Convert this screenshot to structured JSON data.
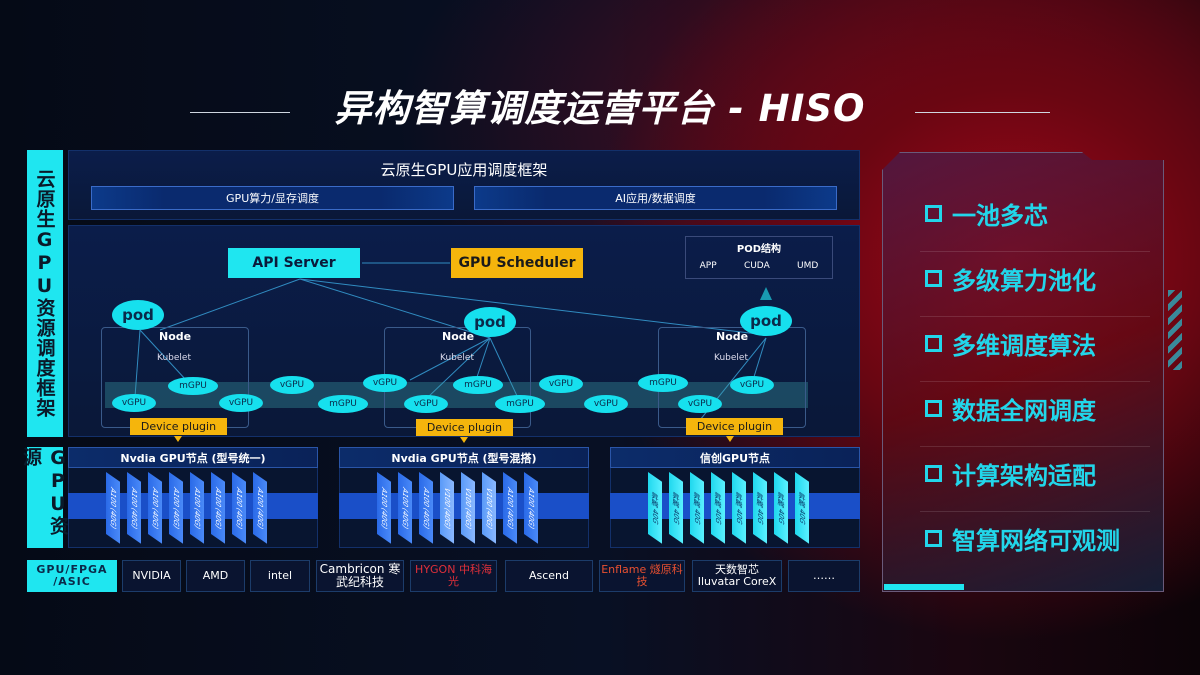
{
  "title": "异构智算调度运营平台 - HISO",
  "side_labels": {
    "framework": "云原生GPU资源调度框架",
    "resources": "GPU资源",
    "hardware": "GPU/FPGA /ASIC"
  },
  "framework": {
    "title": "云原生GPU应用调度框架",
    "sub1": "GPU算力/显存调度",
    "sub2": "AI应用/数据调度"
  },
  "diagram": {
    "api_server": "API Server",
    "gpu_scheduler": "GPU Scheduler",
    "pod_struct": {
      "title": "POD结构",
      "items": [
        "APP",
        "CUDA",
        "UMD"
      ]
    },
    "node": "Node",
    "kubelet": "Kubelet",
    "pod": "pod",
    "device_plugin": "Device plugin",
    "units": [
      "vGPU",
      "mGPU",
      "vGPU",
      "vGPU",
      "mGPU",
      "vGPU",
      "mGPU",
      "vGPU",
      "mGPU",
      "vGPU",
      "vGPU",
      "mGPU",
      "vGPU",
      "vGPU"
    ]
  },
  "gpu_nodes": [
    {
      "title": "Nvdia GPU节点 (型号统一)",
      "chips": [
        "A100 (40G)",
        "A100 (40G)",
        "A100 (40G)",
        "A100 (40G)",
        "A100 (40G)",
        "A100 (40G)",
        "A100 (40G)",
        "A100 (40G)"
      ]
    },
    {
      "title": "Nvdia GPU节点 (型号混搭)",
      "chips": [
        "A100 (40G)",
        "A100 (40G)",
        "A100 (40G)",
        "V100 (40G)",
        "V100 (40G)",
        "V100 (40G)",
        "A100 (40G)",
        "A100 (40G)"
      ]
    },
    {
      "title": "信创GPU节点",
      "chips": [
        "昇腾 40G",
        "昇腾 40G",
        "昇腾 40G",
        "昇腾 40G",
        "昇腾 40G",
        "昇腾 40G",
        "昇腾 40G",
        "昇腾 40G"
      ]
    }
  ],
  "vendors": [
    "NVIDIA",
    "AMD",
    "intel",
    "Cambricon 寒武纪科技",
    "HYGON 中科海光",
    "Ascend",
    "Enflame 燧原科技",
    "天数智芯 Iluvatar CoreX",
    "……"
  ],
  "features": [
    "一池多芯",
    "多级算力池化",
    "多维调度算法",
    "数据全网调度",
    "计算架构适配",
    "智算网络可观测"
  ],
  "colors": {
    "accent": "#1fe6f0",
    "highlight": "#f5b50c",
    "bg_red": "#a3081a"
  }
}
